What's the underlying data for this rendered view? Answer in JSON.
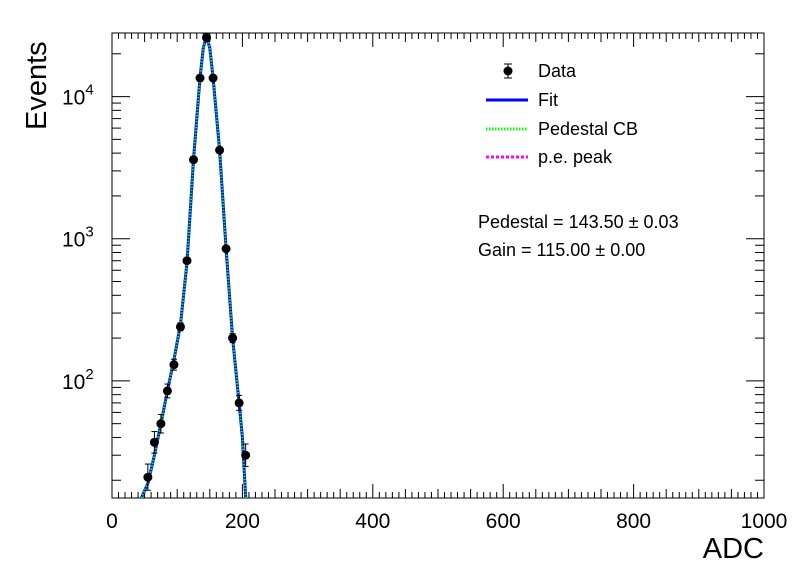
{
  "chart_data": {
    "type": "scatter",
    "title": "",
    "xlabel": "ADC",
    "ylabel": "Events",
    "xlim": [
      0,
      1000
    ],
    "ylim": [
      15,
      28000
    ],
    "y_scale": "log",
    "x_ticks": [
      "0",
      "200",
      "400",
      "600",
      "800",
      "1000"
    ],
    "y_ticks": [
      {
        "value": 100,
        "base": "10",
        "exp": "2"
      },
      {
        "value": 1000,
        "base": "10",
        "exp": "3"
      },
      {
        "value": 10000,
        "base": "10",
        "exp": "4"
      }
    ],
    "legend": {
      "position": "top-right",
      "entries": [
        {
          "label": "Data",
          "style": "marker",
          "color": "#000000"
        },
        {
          "label": "Fit",
          "style": "solid",
          "color": "#0000ff"
        },
        {
          "label": "Pedestal CB",
          "style": "dotted",
          "color": "#00ff00"
        },
        {
          "label": "p.e. peak",
          "style": "dotted",
          "color": "#ff00ff"
        }
      ]
    },
    "annotations": [
      {
        "label": "Pedestal = 143.50",
        "pm": "±",
        "err": "0.03"
      },
      {
        "label": "Gain = 115.00",
        "pm": "±",
        "err": "0.00"
      }
    ],
    "series": [
      {
        "name": "Data",
        "x": [
          55,
          65,
          75,
          85,
          95,
          105,
          115,
          125,
          135,
          145,
          155,
          165,
          175,
          185,
          195,
          205
        ],
        "y": [
          21,
          37,
          50,
          85,
          130,
          240,
          700,
          3600,
          13500,
          26000,
          13500,
          4200,
          850,
          200,
          70,
          30
        ],
        "y_err_low": [
          4,
          6,
          7,
          9,
          11,
          15,
          26,
          60,
          116,
          161,
          116,
          65,
          29,
          14,
          8,
          5
        ],
        "y_err_high": [
          5,
          7,
          8,
          10,
          12,
          16,
          27,
          60,
          116,
          161,
          116,
          65,
          30,
          15,
          9,
          6
        ]
      },
      {
        "name": "Fit",
        "x": [
          45,
          55,
          65,
          75,
          85,
          95,
          105,
          115,
          125,
          135,
          140,
          145,
          150,
          155,
          165,
          175,
          185,
          195,
          200,
          205
        ],
        "y": [
          15,
          19,
          30,
          50,
          85,
          140,
          250,
          680,
          3600,
          13500,
          22000,
          26500,
          22000,
          13500,
          4200,
          850,
          200,
          70,
          40,
          15
        ],
        "color": "#0000ff"
      },
      {
        "name": "Pedestal CB",
        "x": [
          45,
          55,
          65,
          75,
          85,
          95,
          105,
          115,
          125,
          135,
          140,
          145,
          150,
          155,
          165,
          175,
          185,
          195,
          200,
          205
        ],
        "y": [
          15,
          19,
          30,
          50,
          85,
          140,
          250,
          680,
          3600,
          13500,
          22000,
          26500,
          22000,
          13500,
          4200,
          850,
          200,
          70,
          40,
          15
        ],
        "color": "#00ff00"
      }
    ]
  }
}
